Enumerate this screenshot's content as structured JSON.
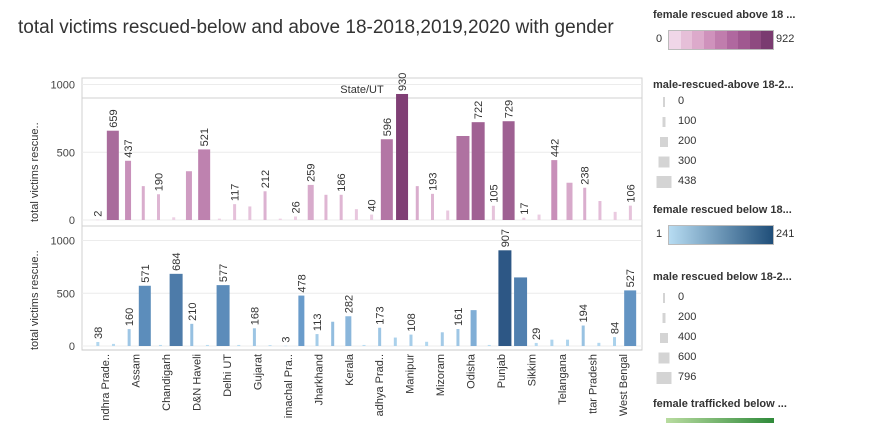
{
  "title": "total victims rescued-below and above 18-2018,2019,2020 with gender",
  "chart_data": {
    "type": "bar",
    "column_header": "State/UT",
    "ylabel_top": "total victims rescue..",
    "ylabel_bottom": "total victims rescue..",
    "ylim_top": [
      0,
      1100
    ],
    "ylim_bottom": [
      0,
      1100
    ],
    "yticks": [
      0,
      500,
      1000
    ],
    "categories": [
      "Andhra Prade..",
      "Assam",
      "Chandigarh",
      "D&N Haveli",
      "Delhi UT",
      "Gujarat",
      "Himachal Pra..",
      "Jharkhand",
      "Kerala",
      "Madhya Prad..",
      "Manipur",
      "Mizoram",
      "Odisha",
      "Punjab",
      "Sikkim",
      "Telangana",
      "Uttar Pradesh",
      "West Bengal"
    ],
    "category_labels": [
      "ndhra Prade..",
      "Assam",
      "Chandigarh",
      "D&N Haveli",
      "Delhi UT",
      "Gujarat",
      "imachal Pra..",
      "Jharkhand",
      "Kerala",
      "adhya Prad..",
      "Manipur",
      "Mizoram",
      "Odisha",
      "Punjab",
      "Sikkim",
      "Telangana",
      "ttar Pradesh",
      "West Bengal"
    ],
    "top_series": {
      "name": "female rescued above 18 ...",
      "values": [
        2,
        659,
        437,
        250,
        190,
        20,
        360,
        521,
        10,
        117,
        100,
        212,
        10,
        26,
        259,
        186,
        186,
        80,
        40,
        596,
        930,
        250,
        193,
        70,
        620,
        722,
        105,
        729,
        17,
        40,
        442,
        275,
        238,
        140,
        60,
        106
      ],
      "value_labels": [
        "2",
        "659",
        "437",
        "",
        "190",
        "",
        "",
        "521",
        "",
        "117",
        "",
        "212",
        "",
        "26",
        "259",
        "",
        "186",
        "",
        "40",
        "596",
        "930",
        "",
        "193",
        "",
        "",
        "722",
        "105",
        "729",
        "17",
        "",
        "442",
        "",
        "238",
        "",
        "",
        "106"
      ]
    },
    "bottom_series": {
      "name": "female rescued below 18...",
      "values": [
        38,
        20,
        160,
        571,
        10,
        684,
        210,
        10,
        577,
        10,
        168,
        8,
        3,
        478,
        113,
        230,
        282,
        10,
        173,
        80,
        108,
        40,
        130,
        161,
        340,
        10,
        907,
        650,
        29,
        60,
        60,
        194,
        30,
        84,
        527
      ],
      "value_labels": [
        "38",
        "",
        "160",
        "571",
        "",
        "684",
        "210",
        "",
        "577",
        "",
        "168",
        "",
        "3",
        "478",
        "113",
        "",
        "282",
        "",
        "173",
        "",
        "108",
        "",
        "",
        "161",
        "",
        "",
        "907",
        "",
        "29",
        "",
        "",
        "194",
        "",
        "84",
        "527"
      ]
    }
  },
  "legends": {
    "female_above": {
      "title": "female rescued above 18 ...",
      "min": "0",
      "max": "922",
      "colors": [
        "#f0d6e8",
        "#e6bfd8",
        "#dcaacb",
        "#cf92bc",
        "#c07dad",
        "#b0689f",
        "#a05890",
        "#8e4a80",
        "#7a3b70"
      ]
    },
    "male_above": {
      "title": "male-rescued-above 18-2...",
      "labels": [
        "0",
        "100",
        "200",
        "300",
        "438"
      ]
    },
    "female_below": {
      "title": "female rescued below 18...",
      "min": "1",
      "max": "241",
      "colors": [
        "#b7dcf2",
        "#1f4e79"
      ]
    },
    "male_below": {
      "title": "male rescued below 18-2...",
      "labels": [
        "0",
        "200",
        "400",
        "600",
        "796"
      ]
    },
    "trafficked": {
      "title": "female trafficked below ..."
    }
  }
}
